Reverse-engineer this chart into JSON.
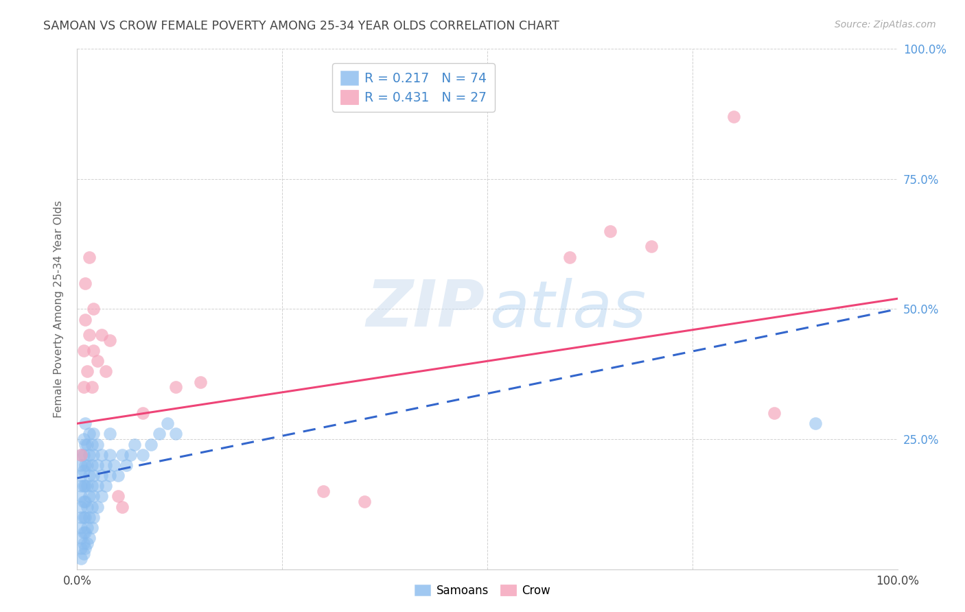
{
  "title": "SAMOAN VS CROW FEMALE POVERTY AMONG 25-34 YEAR OLDS CORRELATION CHART",
  "source": "Source: ZipAtlas.com",
  "ylabel": "Female Poverty Among 25-34 Year Olds",
  "xlim": [
    0,
    1.0
  ],
  "ylim": [
    0,
    1.0
  ],
  "background_color": "#ffffff",
  "legend_R_samoan": "0.217",
  "legend_N_samoan": "74",
  "legend_R_crow": "0.431",
  "legend_N_crow": "27",
  "samoan_color": "#88bbee",
  "crow_color": "#f4a0b8",
  "samoan_line_color": "#3366cc",
  "crow_line_color": "#ee4477",
  "legend_text_color": "#4488cc",
  "title_color": "#444444",
  "axis_label_color": "#666666",
  "right_tick_color": "#5599dd",
  "grid_color": "#cccccc",
  "samoan_scatter": [
    [
      0.005,
      0.02
    ],
    [
      0.005,
      0.04
    ],
    [
      0.005,
      0.06
    ],
    [
      0.005,
      0.08
    ],
    [
      0.005,
      0.1
    ],
    [
      0.005,
      0.12
    ],
    [
      0.005,
      0.14
    ],
    [
      0.005,
      0.16
    ],
    [
      0.005,
      0.18
    ],
    [
      0.005,
      0.2
    ],
    [
      0.005,
      0.22
    ],
    [
      0.008,
      0.03
    ],
    [
      0.008,
      0.05
    ],
    [
      0.008,
      0.07
    ],
    [
      0.008,
      0.1
    ],
    [
      0.008,
      0.13
    ],
    [
      0.008,
      0.16
    ],
    [
      0.008,
      0.19
    ],
    [
      0.008,
      0.22
    ],
    [
      0.008,
      0.25
    ],
    [
      0.01,
      0.04
    ],
    [
      0.01,
      0.07
    ],
    [
      0.01,
      0.1
    ],
    [
      0.01,
      0.13
    ],
    [
      0.01,
      0.16
    ],
    [
      0.01,
      0.2
    ],
    [
      0.01,
      0.24
    ],
    [
      0.01,
      0.28
    ],
    [
      0.012,
      0.05
    ],
    [
      0.012,
      0.08
    ],
    [
      0.012,
      0.12
    ],
    [
      0.012,
      0.16
    ],
    [
      0.012,
      0.2
    ],
    [
      0.012,
      0.24
    ],
    [
      0.015,
      0.06
    ],
    [
      0.015,
      0.1
    ],
    [
      0.015,
      0.14
    ],
    [
      0.015,
      0.18
    ],
    [
      0.015,
      0.22
    ],
    [
      0.015,
      0.26
    ],
    [
      0.018,
      0.08
    ],
    [
      0.018,
      0.12
    ],
    [
      0.018,
      0.16
    ],
    [
      0.018,
      0.2
    ],
    [
      0.018,
      0.24
    ],
    [
      0.02,
      0.1
    ],
    [
      0.02,
      0.14
    ],
    [
      0.02,
      0.18
    ],
    [
      0.02,
      0.22
    ],
    [
      0.02,
      0.26
    ],
    [
      0.025,
      0.12
    ],
    [
      0.025,
      0.16
    ],
    [
      0.025,
      0.2
    ],
    [
      0.025,
      0.24
    ],
    [
      0.03,
      0.14
    ],
    [
      0.03,
      0.18
    ],
    [
      0.03,
      0.22
    ],
    [
      0.035,
      0.16
    ],
    [
      0.035,
      0.2
    ],
    [
      0.04,
      0.18
    ],
    [
      0.04,
      0.22
    ],
    [
      0.04,
      0.26
    ],
    [
      0.045,
      0.2
    ],
    [
      0.05,
      0.18
    ],
    [
      0.055,
      0.22
    ],
    [
      0.06,
      0.2
    ],
    [
      0.065,
      0.22
    ],
    [
      0.07,
      0.24
    ],
    [
      0.08,
      0.22
    ],
    [
      0.09,
      0.24
    ],
    [
      0.1,
      0.26
    ],
    [
      0.11,
      0.28
    ],
    [
      0.12,
      0.26
    ],
    [
      0.9,
      0.28
    ]
  ],
  "crow_scatter": [
    [
      0.005,
      0.22
    ],
    [
      0.008,
      0.35
    ],
    [
      0.008,
      0.42
    ],
    [
      0.01,
      0.48
    ],
    [
      0.01,
      0.55
    ],
    [
      0.012,
      0.38
    ],
    [
      0.015,
      0.45
    ],
    [
      0.015,
      0.6
    ],
    [
      0.018,
      0.35
    ],
    [
      0.02,
      0.42
    ],
    [
      0.02,
      0.5
    ],
    [
      0.025,
      0.4
    ],
    [
      0.03,
      0.45
    ],
    [
      0.035,
      0.38
    ],
    [
      0.04,
      0.44
    ],
    [
      0.05,
      0.14
    ],
    [
      0.055,
      0.12
    ],
    [
      0.08,
      0.3
    ],
    [
      0.12,
      0.35
    ],
    [
      0.15,
      0.36
    ],
    [
      0.3,
      0.15
    ],
    [
      0.35,
      0.13
    ],
    [
      0.6,
      0.6
    ],
    [
      0.65,
      0.65
    ],
    [
      0.7,
      0.62
    ],
    [
      0.8,
      0.87
    ],
    [
      0.85,
      0.3
    ]
  ],
  "crow_trendline_x": [
    0.0,
    1.0
  ],
  "crow_trendline_y": [
    0.28,
    0.52
  ],
  "samoan_trendline_x": [
    0.0,
    1.0
  ],
  "samoan_trendline_y": [
    0.175,
    0.5
  ]
}
